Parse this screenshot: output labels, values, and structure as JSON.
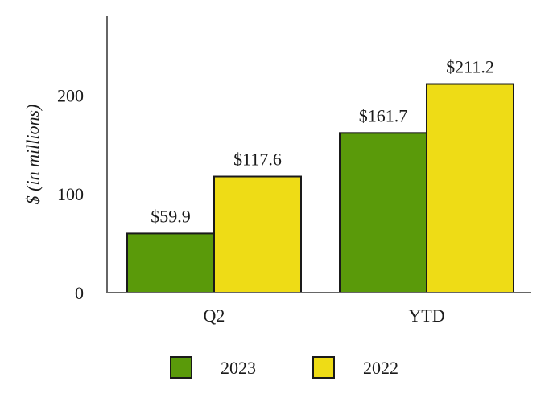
{
  "chart_data": {
    "type": "bar",
    "title": "",
    "xlabel": "",
    "ylabel": "$ (in millions)",
    "categories": [
      "Q2",
      "YTD"
    ],
    "series": [
      {
        "name": "2023",
        "values": [
          59.9,
          161.7
        ],
        "labels": [
          "$59.9",
          "$161.7"
        ],
        "color": "#5a9a0a"
      },
      {
        "name": "2022",
        "values": [
          117.6,
          211.2
        ],
        "labels": [
          "$117.6",
          "$211.2"
        ],
        "color": "#eedc16"
      }
    ],
    "ylim": [
      0,
      280
    ],
    "yticks": [
      0,
      100,
      200
    ],
    "ytick_labels": [
      "0",
      "100",
      "200"
    ],
    "grid": false,
    "legend_position": "bottom"
  }
}
